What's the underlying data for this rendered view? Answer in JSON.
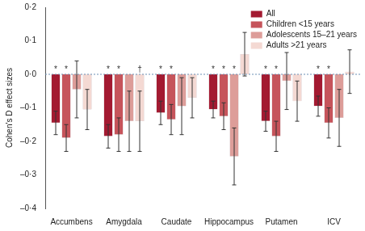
{
  "chart_data": {
    "type": "bar",
    "y_label": "Cohen's D effect sizes",
    "categories": [
      "Accumbens",
      "Amygdala",
      "Caudate",
      "Hippocampus",
      "Putamen",
      "ICV"
    ],
    "series": [
      {
        "name": "All",
        "color": "#a31a31",
        "values": [
          -0.145,
          -0.185,
          -0.115,
          -0.105,
          -0.14,
          -0.095
        ],
        "errors": [
          0.035,
          0.035,
          0.035,
          0.025,
          0.03,
          0.03
        ],
        "significance": [
          "*",
          "*",
          "*",
          "*",
          "*",
          "*"
        ]
      },
      {
        "name": "Children <15 years",
        "color": "#c6545b",
        "values": [
          -0.19,
          -0.18,
          -0.135,
          -0.125,
          -0.185,
          -0.145
        ],
        "errors": [
          0.04,
          0.05,
          0.045,
          0.04,
          0.045,
          0.045
        ],
        "significance": [
          "*",
          "*",
          "*",
          "*",
          "*",
          "*"
        ]
      },
      {
        "name": "Adolescents 15–21 years",
        "color": "#dd9d99",
        "values": [
          -0.045,
          -0.14,
          -0.095,
          -0.245,
          -0.02,
          -0.13
        ],
        "errors": [
          0.085,
          0.09,
          0.085,
          0.085,
          0.085,
          0.085
        ],
        "significance": [
          null,
          null,
          null,
          "*",
          null,
          null
        ]
      },
      {
        "name": "Adults >21 years",
        "color": "#f4d9d3",
        "values": [
          -0.105,
          -0.14,
          -0.07,
          0.06,
          -0.08,
          0.008
        ],
        "errors": [
          0.06,
          0.09,
          0.06,
          0.065,
          0.06,
          0.065
        ],
        "significance": [
          null,
          "†",
          null,
          null,
          null,
          null
        ]
      }
    ],
    "ylim": [
      -0.4,
      0.2
    ],
    "yticks": [
      {
        "value": -0.4,
        "label": "–0·4"
      },
      {
        "value": -0.3,
        "label": "–0·3"
      },
      {
        "value": -0.2,
        "label": "–0·2"
      },
      {
        "value": -0.1,
        "label": "–0·1"
      },
      {
        "value": 0,
        "label": "0·0"
      },
      {
        "value": 0.1,
        "label": "0·1"
      },
      {
        "value": 0.2,
        "label": "0·2"
      }
    ],
    "grid": false,
    "legend": "top-right"
  }
}
